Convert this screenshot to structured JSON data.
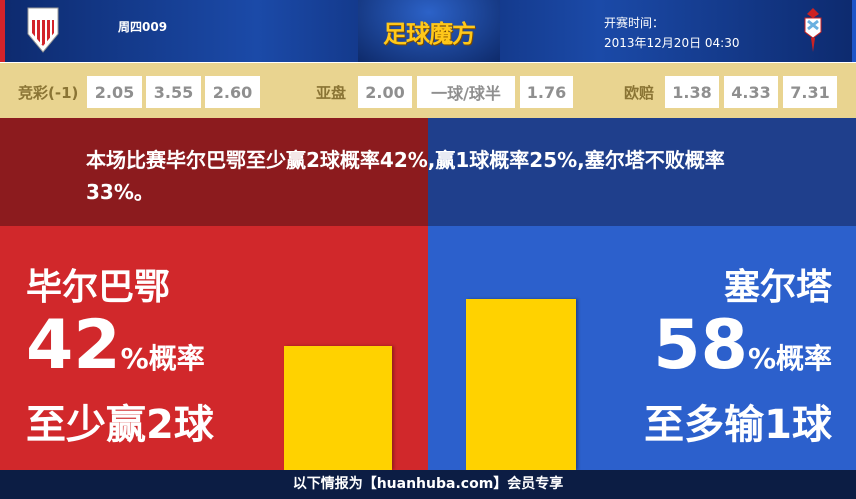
{
  "header": {
    "match_no": "周四009",
    "logo_text": "足球魔方",
    "kickoff_label": "开赛时间：",
    "kickoff_time": "2013年12月20日 04:30",
    "home_crest": "athletic-club-crest",
    "away_crest": "celta-crest"
  },
  "odds": {
    "jingcai": {
      "label": "竞彩(-1)",
      "values": [
        "2.05",
        "3.55",
        "2.60"
      ]
    },
    "asian": {
      "label": "亚盘",
      "values": [
        "2.00",
        "一球/球半",
        "1.76"
      ]
    },
    "european": {
      "label": "欧赔",
      "values": [
        "1.38",
        "4.33",
        "7.31"
      ]
    }
  },
  "summary": "本场比赛毕尔巴鄂至少赢2球概率42%,赢1球概率25%,塞尔塔不败概率33%。",
  "home": {
    "name": "毕尔巴鄂",
    "percent": "42",
    "percent_suffix": "%概率",
    "result": "至少赢2球",
    "probability": 42,
    "color": "#d1282b"
  },
  "away": {
    "name": "塞尔塔",
    "percent": "58",
    "percent_suffix": "%概率",
    "result": "至多输1球",
    "probability": 58,
    "color": "#2c60cc"
  },
  "footer": "以下情报为【huanhuba.com】会员专享"
}
